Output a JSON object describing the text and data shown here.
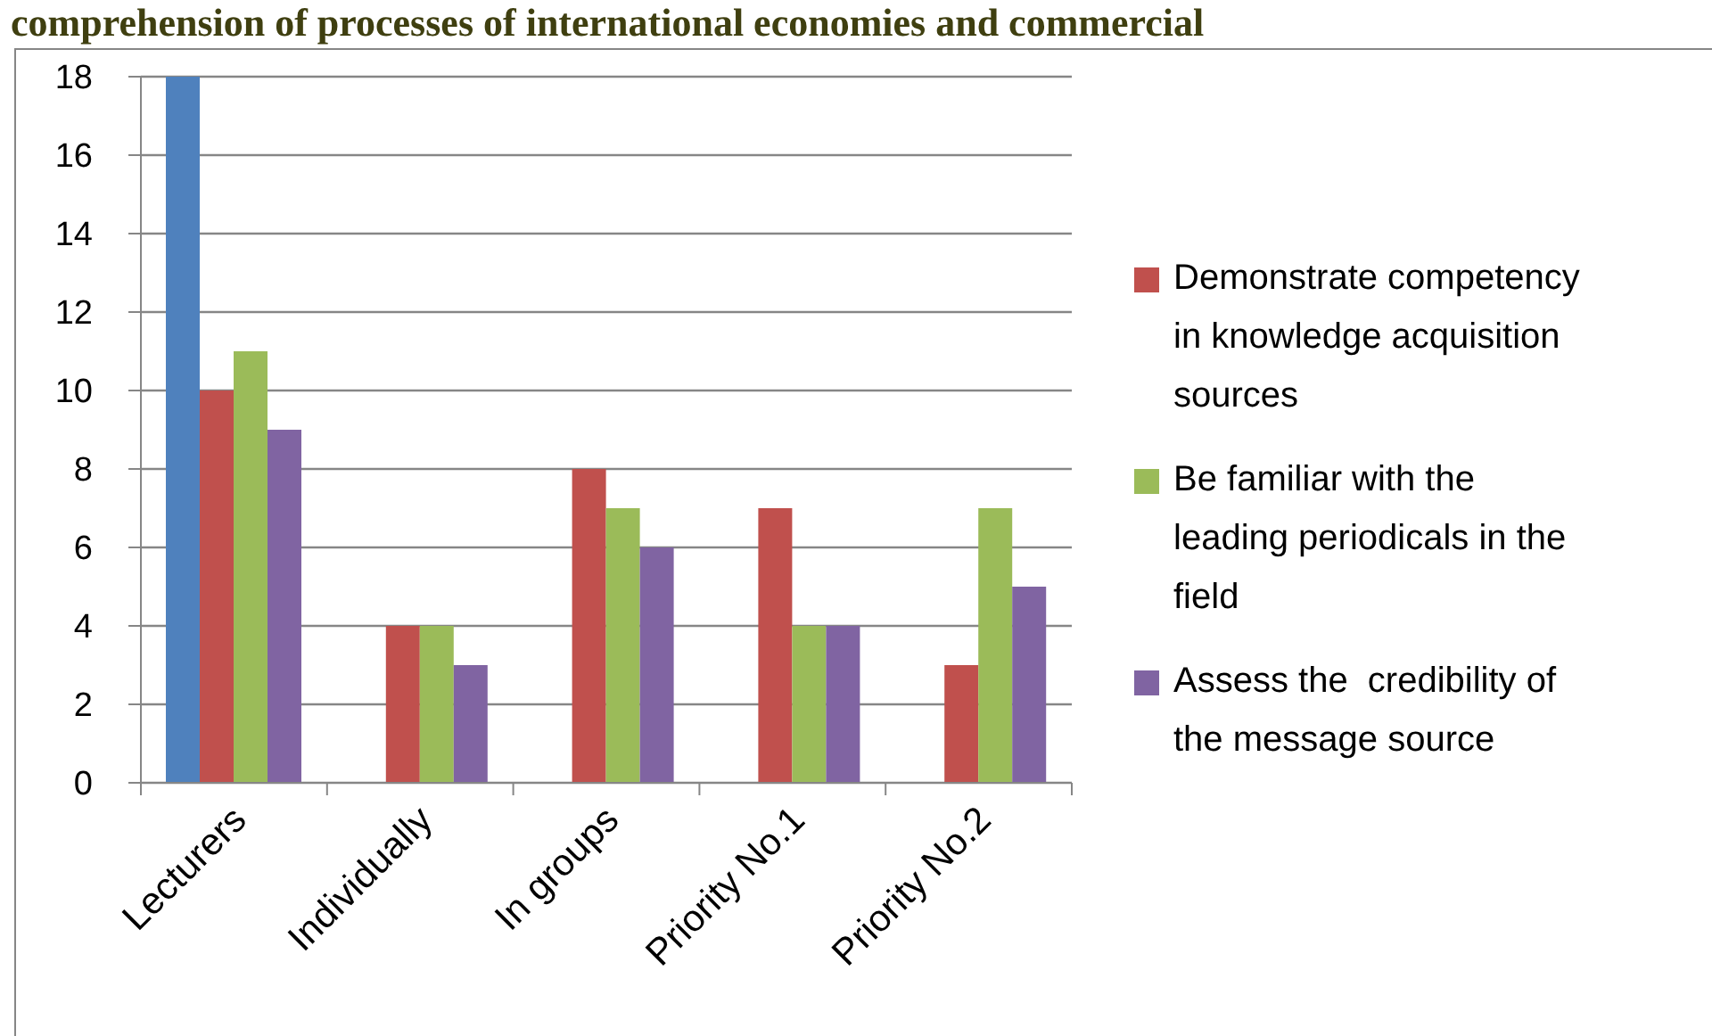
{
  "chart_data": {
    "type": "bar",
    "title": "comprehension of processes of international economies and commercial",
    "categories": [
      "Lecturers",
      "Individually",
      "In groups",
      "Priority No.1",
      "Priority No.2"
    ],
    "series": [
      {
        "color": "#4f81bd",
        "values": [
          18,
          null,
          null,
          null,
          null
        ]
      },
      {
        "name": "Demonstrate competency in knowledge acquisition sources",
        "color": "#c0504d",
        "values": [
          10,
          4,
          8,
          7,
          3
        ]
      },
      {
        "name": "Be familiar with the leading periodicals in the field",
        "color": "#9bbb59",
        "values": [
          11,
          4,
          7,
          4,
          7
        ]
      },
      {
        "name": "Assess the  credibility of the message source",
        "color": "#8064a2",
        "values": [
          9,
          3,
          6,
          4,
          5
        ]
      }
    ],
    "ylim": [
      0,
      18
    ],
    "yticks": [
      0,
      2,
      4,
      6,
      8,
      10,
      12,
      14,
      16,
      18
    ],
    "grid": "y",
    "legend": "right"
  }
}
